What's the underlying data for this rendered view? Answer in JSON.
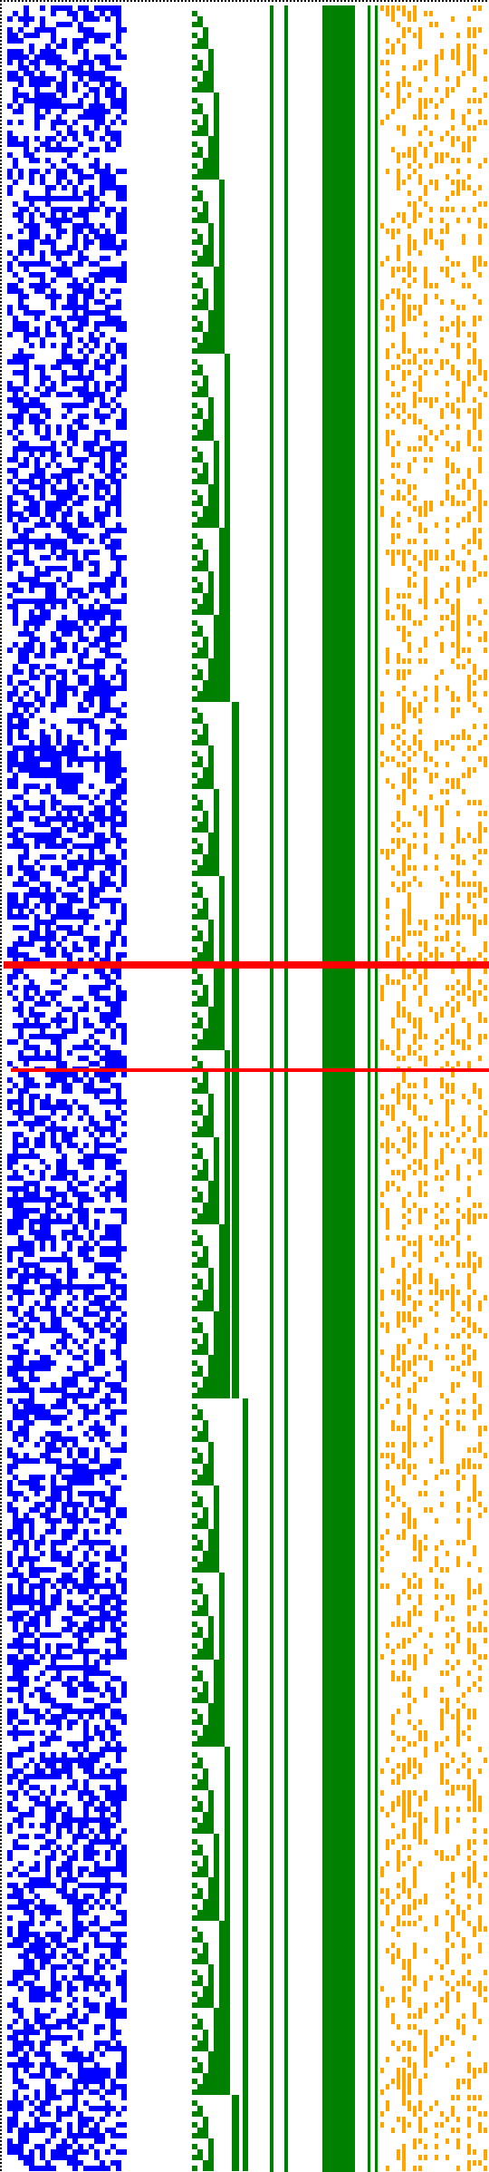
{
  "colors": {
    "background": "#ffffff",
    "random_bits": "#0000ff",
    "counter_bits": "#008000",
    "solid_column": "#008000",
    "sparse_bits": "#ffa500",
    "markers": "#ff0000",
    "border_dots": "#000000"
  },
  "chart_data": {
    "type": "heatmap",
    "rows": 2395,
    "regions": [
      {
        "name": "",
        "pattern": "random",
        "color": "#0000ff",
        "density": 0.5
      },
      {
        "name": "",
        "pattern": "binary-counter",
        "color": "#008000"
      },
      {
        "name": "",
        "pattern": "solid",
        "color": "#008000"
      },
      {
        "name": "",
        "pattern": "sparse-runs",
        "color": "#ffa500",
        "density": 0.28
      }
    ],
    "marker_rows": [
      1060,
      1178
    ],
    "marker_style": "red horizontal line",
    "top_border": "dotted",
    "left_border": "dotted"
  }
}
